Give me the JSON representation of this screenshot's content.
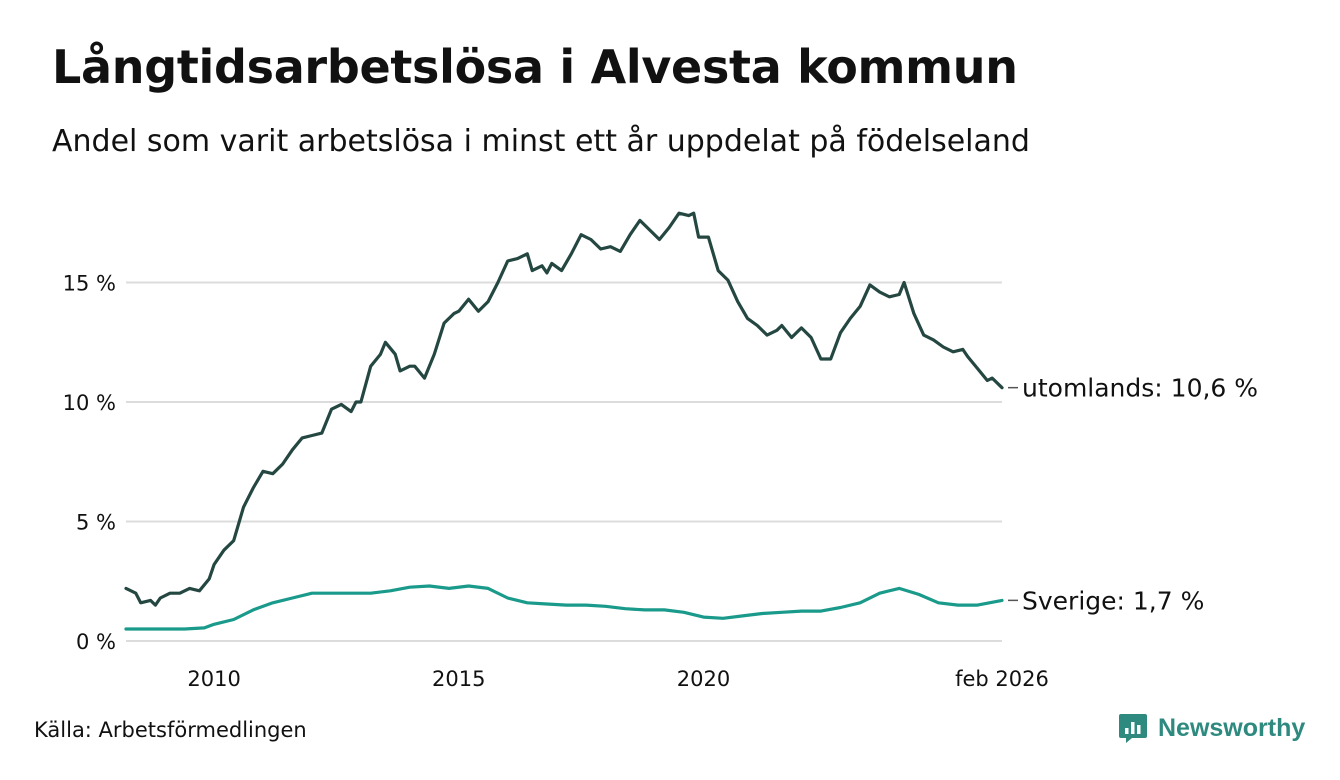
{
  "title": "Långtidsarbetslösa i Alvesta kommun",
  "subtitle": "Andel som varit arbetslösa i minst ett år uppdelat på födelseland",
  "source": "Källa: Arbetsförmedlingen",
  "brand": "Newsworthy",
  "colors": {
    "utomlands": "#254741",
    "sverige": "#1a9a8b",
    "grid": "#dcdcdc",
    "brand": "#2e8a7f"
  },
  "chart_data": {
    "type": "line",
    "title": "Långtidsarbetslösa i Alvesta kommun",
    "xlabel": "",
    "ylabel": "",
    "ylim": [
      0,
      18.5
    ],
    "xlim": [
      2008.2,
      2026.1
    ],
    "yticks": [
      {
        "value": 0,
        "label": "0 %"
      },
      {
        "value": 5,
        "label": "5 %"
      },
      {
        "value": 10,
        "label": "10 %"
      },
      {
        "value": 15,
        "label": "15 %"
      }
    ],
    "xticks": [
      {
        "value": 2010,
        "label": "2010"
      },
      {
        "value": 2015,
        "label": "2015"
      },
      {
        "value": 2020,
        "label": "2020"
      },
      {
        "value": 2026.1,
        "label": "feb 2026"
      }
    ],
    "series": [
      {
        "name": "utomlands",
        "end_label": "utomlands: 10,6 %",
        "points": [
          [
            2008.2,
            2.2
          ],
          [
            2008.4,
            2.0
          ],
          [
            2008.5,
            1.6
          ],
          [
            2008.7,
            1.7
          ],
          [
            2008.8,
            1.5
          ],
          [
            2008.9,
            1.8
          ],
          [
            2009.1,
            2.0
          ],
          [
            2009.3,
            2.0
          ],
          [
            2009.5,
            2.2
          ],
          [
            2009.7,
            2.1
          ],
          [
            2009.9,
            2.6
          ],
          [
            2010.0,
            3.2
          ],
          [
            2010.2,
            3.8
          ],
          [
            2010.4,
            4.2
          ],
          [
            2010.6,
            5.6
          ],
          [
            2010.8,
            6.4
          ],
          [
            2011.0,
            7.1
          ],
          [
            2011.2,
            7.0
          ],
          [
            2011.4,
            7.4
          ],
          [
            2011.6,
            8.0
          ],
          [
            2011.8,
            8.5
          ],
          [
            2012.0,
            8.6
          ],
          [
            2012.2,
            8.7
          ],
          [
            2012.4,
            9.7
          ],
          [
            2012.6,
            9.9
          ],
          [
            2012.8,
            9.6
          ],
          [
            2012.9,
            10.0
          ],
          [
            2013.0,
            10.0
          ],
          [
            2013.2,
            11.5
          ],
          [
            2013.4,
            12.0
          ],
          [
            2013.5,
            12.5
          ],
          [
            2013.7,
            12.0
          ],
          [
            2013.8,
            11.3
          ],
          [
            2014.0,
            11.5
          ],
          [
            2014.1,
            11.5
          ],
          [
            2014.3,
            11.0
          ],
          [
            2014.5,
            12.0
          ],
          [
            2014.7,
            13.3
          ],
          [
            2014.9,
            13.7
          ],
          [
            2015.0,
            13.8
          ],
          [
            2015.2,
            14.3
          ],
          [
            2015.4,
            13.8
          ],
          [
            2015.6,
            14.2
          ],
          [
            2015.8,
            15.0
          ],
          [
            2016.0,
            15.9
          ],
          [
            2016.2,
            16.0
          ],
          [
            2016.4,
            16.2
          ],
          [
            2016.5,
            15.5
          ],
          [
            2016.7,
            15.7
          ],
          [
            2016.8,
            15.4
          ],
          [
            2016.9,
            15.8
          ],
          [
            2017.1,
            15.5
          ],
          [
            2017.3,
            16.2
          ],
          [
            2017.5,
            17.0
          ],
          [
            2017.7,
            16.8
          ],
          [
            2017.9,
            16.4
          ],
          [
            2018.1,
            16.5
          ],
          [
            2018.3,
            16.3
          ],
          [
            2018.5,
            17.0
          ],
          [
            2018.7,
            17.6
          ],
          [
            2018.9,
            17.2
          ],
          [
            2019.1,
            16.8
          ],
          [
            2019.3,
            17.3
          ],
          [
            2019.5,
            17.9
          ],
          [
            2019.7,
            17.8
          ],
          [
            2019.8,
            17.9
          ],
          [
            2019.9,
            16.9
          ],
          [
            2020.1,
            16.9
          ],
          [
            2020.3,
            15.5
          ],
          [
            2020.5,
            15.1
          ],
          [
            2020.7,
            14.2
          ],
          [
            2020.9,
            13.5
          ],
          [
            2021.1,
            13.2
          ],
          [
            2021.3,
            12.8
          ],
          [
            2021.5,
            13.0
          ],
          [
            2021.6,
            13.2
          ],
          [
            2021.8,
            12.7
          ],
          [
            2022.0,
            13.1
          ],
          [
            2022.2,
            12.7
          ],
          [
            2022.4,
            11.8
          ],
          [
            2022.6,
            11.8
          ],
          [
            2022.8,
            12.9
          ],
          [
            2023.0,
            13.5
          ],
          [
            2023.2,
            14.0
          ],
          [
            2023.4,
            14.9
          ],
          [
            2023.6,
            14.6
          ],
          [
            2023.8,
            14.4
          ],
          [
            2024.0,
            14.5
          ],
          [
            2024.1,
            15.0
          ],
          [
            2024.3,
            13.7
          ],
          [
            2024.5,
            12.8
          ],
          [
            2024.7,
            12.6
          ],
          [
            2024.9,
            12.3
          ],
          [
            2025.1,
            12.1
          ],
          [
            2025.3,
            12.2
          ],
          [
            2025.4,
            11.9
          ],
          [
            2025.6,
            11.4
          ],
          [
            2025.8,
            10.9
          ],
          [
            2025.9,
            11.0
          ],
          [
            2026.1,
            10.6
          ]
        ]
      },
      {
        "name": "Sverige",
        "end_label": "Sverige:  1,7 %",
        "points": [
          [
            2008.2,
            0.5
          ],
          [
            2008.6,
            0.5
          ],
          [
            2009.0,
            0.5
          ],
          [
            2009.4,
            0.5
          ],
          [
            2009.8,
            0.55
          ],
          [
            2010.0,
            0.7
          ],
          [
            2010.4,
            0.9
          ],
          [
            2010.8,
            1.3
          ],
          [
            2011.2,
            1.6
          ],
          [
            2011.6,
            1.8
          ],
          [
            2012.0,
            2.0
          ],
          [
            2012.4,
            2.0
          ],
          [
            2012.8,
            2.0
          ],
          [
            2013.2,
            2.0
          ],
          [
            2013.6,
            2.1
          ],
          [
            2014.0,
            2.25
          ],
          [
            2014.4,
            2.3
          ],
          [
            2014.8,
            2.2
          ],
          [
            2015.2,
            2.3
          ],
          [
            2015.6,
            2.2
          ],
          [
            2016.0,
            1.8
          ],
          [
            2016.4,
            1.6
          ],
          [
            2016.8,
            1.55
          ],
          [
            2017.2,
            1.5
          ],
          [
            2017.6,
            1.5
          ],
          [
            2018.0,
            1.45
          ],
          [
            2018.4,
            1.35
          ],
          [
            2018.8,
            1.3
          ],
          [
            2019.2,
            1.3
          ],
          [
            2019.6,
            1.2
          ],
          [
            2020.0,
            1.0
          ],
          [
            2020.4,
            0.95
          ],
          [
            2020.8,
            1.05
          ],
          [
            2021.2,
            1.15
          ],
          [
            2021.6,
            1.2
          ],
          [
            2022.0,
            1.25
          ],
          [
            2022.4,
            1.25
          ],
          [
            2022.8,
            1.4
          ],
          [
            2023.2,
            1.6
          ],
          [
            2023.6,
            2.0
          ],
          [
            2024.0,
            2.2
          ],
          [
            2024.4,
            1.95
          ],
          [
            2024.8,
            1.6
          ],
          [
            2025.2,
            1.5
          ],
          [
            2025.6,
            1.5
          ],
          [
            2026.1,
            1.7
          ]
        ]
      }
    ]
  }
}
